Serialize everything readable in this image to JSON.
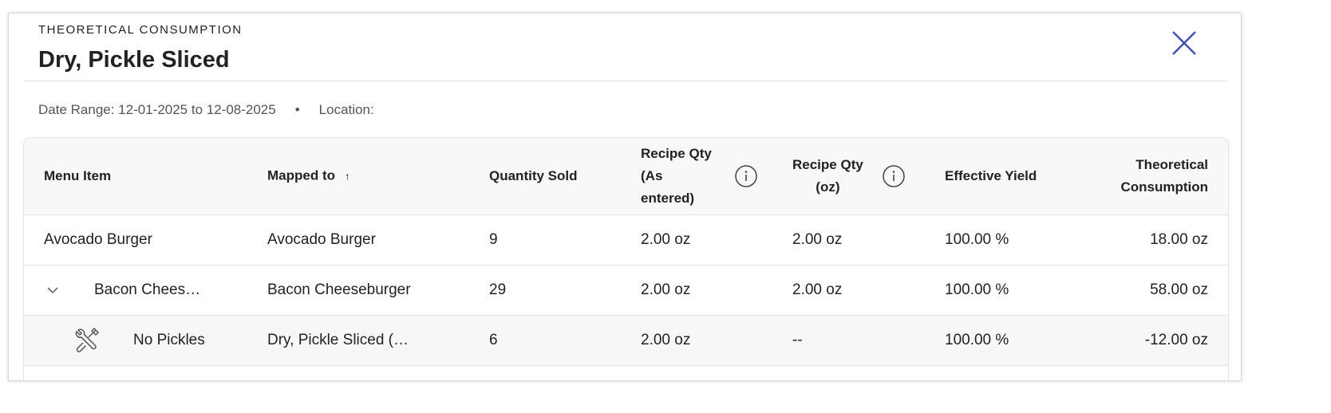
{
  "header": {
    "eyebrow": "THEORETICAL CONSUMPTION",
    "title": "Dry, Pickle Sliced",
    "close_icon": "close-icon"
  },
  "meta": {
    "date_range": "Date Range: 12-01-2025 to 12-08-2025",
    "separator": "•",
    "location": "Location:"
  },
  "colors": {
    "close": "#3b4fb5",
    "header_bg": "#f7f8fa"
  },
  "table": {
    "columns": {
      "menu_item": "Menu Item",
      "mapped_to": "Mapped to",
      "sort_arrow": "↑",
      "qty_sold": "Quantity Sold",
      "recipe_qty_1": "Recipe Qty",
      "recipe_qty_2": "(As",
      "recipe_qty_3": "entered)",
      "recipe_oz_1": "Recipe Qty",
      "recipe_oz_2": "(oz)",
      "yield": "Effective Yield",
      "theo_1": "Theoretical",
      "theo_2": "Consumption"
    },
    "rows": [
      {
        "menu_item": "Avocado Burger",
        "mapped_to": "Avocado Burger",
        "qty_sold": "9",
        "recipe_qty": "2.00 oz",
        "recipe_oz": "2.00 oz",
        "yield": "100.00 %",
        "theoretical": "18.00 oz"
      },
      {
        "menu_item": "Bacon Chees…",
        "mapped_to": "Bacon Cheeseburger",
        "qty_sold": "29",
        "recipe_qty": "2.00 oz",
        "recipe_oz": "2.00 oz",
        "yield": "100.00 %",
        "theoretical": "58.00 oz",
        "expand_icon": "chevron-down-icon"
      },
      {
        "menu_item": "No Pickles",
        "mapped_to": "Dry, Pickle Sliced (…",
        "qty_sold": "6",
        "recipe_qty": "2.00 oz",
        "recipe_oz": "--",
        "yield": "100.00 %",
        "theoretical": "-12.00 oz",
        "icon": "modifier-tools-icon"
      }
    ]
  }
}
